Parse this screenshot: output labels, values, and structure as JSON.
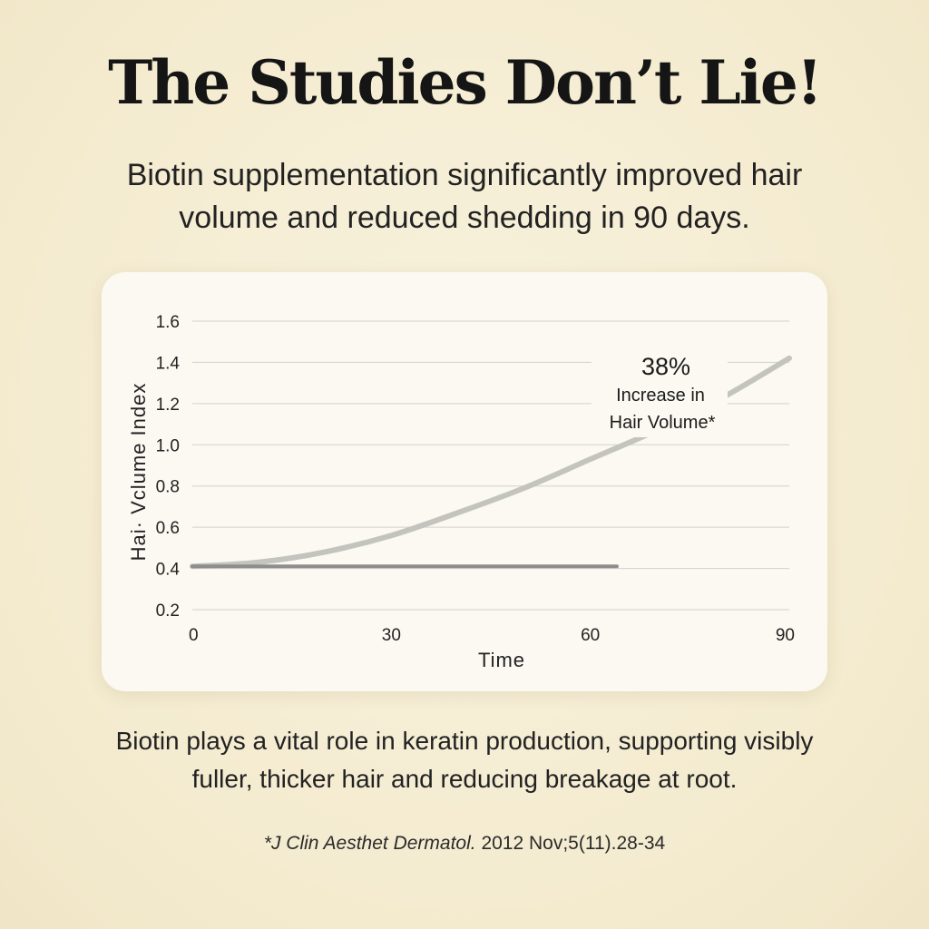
{
  "headline": "The Studies Don’t Lie!",
  "subhead": "Biotin supplementation significantly improved hair volume and reduced shedding in 90 days.",
  "body_text": "Biotin plays a vital role in keratin production, supporting visibly fuller, thicker hair and reducing breakage at root.",
  "footnote": {
    "journal": "*J Clin Aesthet Dermatol.",
    "citation": " 2012 Nov;5(11).28-34"
  },
  "chart_data": {
    "type": "line",
    "xlabel": "Time",
    "ylabel": "Hai· Vclume Index",
    "xlim": [
      0,
      90
    ],
    "ylim": [
      0.2,
      1.6
    ],
    "x_ticks": [
      "0",
      "30",
      "60",
      "90"
    ],
    "y_ticks": [
      "1.6",
      "1.4",
      "1.2",
      "1.0",
      "0.8",
      "0.6",
      "0.4",
      "0.2"
    ],
    "grid": true,
    "series": [
      {
        "color": "#c4c4bf",
        "x": [
          0,
          10,
          20,
          30,
          40,
          50,
          60,
          70,
          80,
          90
        ],
        "y": [
          0.41,
          0.43,
          0.48,
          0.56,
          0.67,
          0.79,
          0.93,
          1.07,
          1.23,
          1.42
        ]
      },
      {
        "color": "#8d8d8d",
        "x": [
          0,
          64
        ],
        "y": [
          0.41,
          0.41
        ]
      }
    ],
    "annotation": {
      "value": "38%",
      "line1": "Increase in",
      "line2": "Hair Volume*"
    }
  }
}
